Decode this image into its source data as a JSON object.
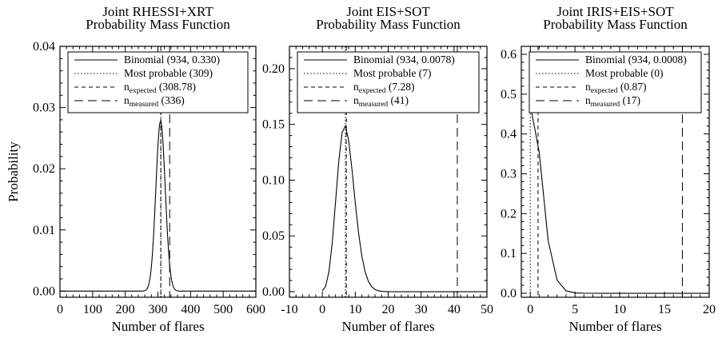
{
  "chart_data": [
    {
      "type": "line",
      "title_lines": [
        "Joint RHESSI+XRT",
        "Probability Mass Function"
      ],
      "xlabel": "Number of flares",
      "ylabel": "Probability",
      "xlim": [
        0,
        600
      ],
      "ylim": [
        -0.001,
        0.04
      ],
      "xticks": [
        0,
        100,
        200,
        300,
        400,
        500,
        600
      ],
      "yticks": [
        0.0,
        0.01,
        0.02,
        0.03,
        0.04
      ],
      "ytick_labels": [
        "0.00",
        "0.01",
        "0.02",
        "0.03",
        "0.04"
      ],
      "binomial": {
        "n": 934,
        "p": 0.33
      },
      "most_probable": 309,
      "expected": 308.78,
      "measured": 336,
      "legend": [
        {
          "style": "solid",
          "text": "Binomial (934, 0.330)"
        },
        {
          "style": "dotted",
          "text": "Most probable (309)"
        },
        {
          "style": "dashed",
          "main": "n",
          "sub": "expected",
          "rest": " (308.78)"
        },
        {
          "style": "longdash",
          "main": "n",
          "sub": "measured",
          "rest": " (336)"
        }
      ]
    },
    {
      "type": "line",
      "title_lines": [
        "Joint EIS+SOT",
        "Probability Mass Function"
      ],
      "xlabel": "Number of flares",
      "ylabel": "",
      "xlim": [
        -10,
        50
      ],
      "ylim": [
        -0.005,
        0.22
      ],
      "xticks": [
        -10,
        0,
        10,
        20,
        30,
        40,
        50
      ],
      "yticks": [
        0.0,
        0.05,
        0.1,
        0.15,
        0.2
      ],
      "ytick_labels": [
        "0.00",
        "0.05",
        "0.10",
        "0.15",
        "0.20"
      ],
      "binomial": {
        "n": 934,
        "p": 0.0078
      },
      "most_probable": 7,
      "expected": 7.28,
      "measured": 41,
      "legend": [
        {
          "style": "solid",
          "text": "Binomial (934, 0.0078)"
        },
        {
          "style": "dotted",
          "text": "Most probable (7)"
        },
        {
          "style": "dashed",
          "main": "n",
          "sub": "expected",
          "rest": " (7.28)"
        },
        {
          "style": "longdash",
          "main": "n",
          "sub": "measured",
          "rest": " (41)"
        }
      ]
    },
    {
      "type": "line",
      "title_lines": [
        "Joint IRIS+EIS+SOT",
        "Probability Mass Function"
      ],
      "xlabel": "Number of flares",
      "ylabel": "",
      "xlim": [
        -1,
        20
      ],
      "ylim": [
        -0.01,
        0.62
      ],
      "xticks": [
        0,
        5,
        10,
        15,
        20
      ],
      "yticks": [
        0.0,
        0.1,
        0.2,
        0.3,
        0.4,
        0.5,
        0.6
      ],
      "ytick_labels": [
        "0.0",
        "0.1",
        "0.2",
        "0.3",
        "0.4",
        "0.5",
        "0.6"
      ],
      "binomial": {
        "n": 934,
        "p": 0.0008
      },
      "most_probable": 0,
      "expected": 0.87,
      "measured": 17,
      "legend": [
        {
          "style": "solid",
          "text": "Binomial (934, 0.0008)"
        },
        {
          "style": "dotted",
          "text": "Most probable (0)"
        },
        {
          "style": "dashed",
          "main": "n",
          "sub": "expected",
          "rest": " (0.87)"
        },
        {
          "style": "longdash",
          "main": "n",
          "sub": "measured",
          "rest": " (17)"
        }
      ]
    }
  ]
}
